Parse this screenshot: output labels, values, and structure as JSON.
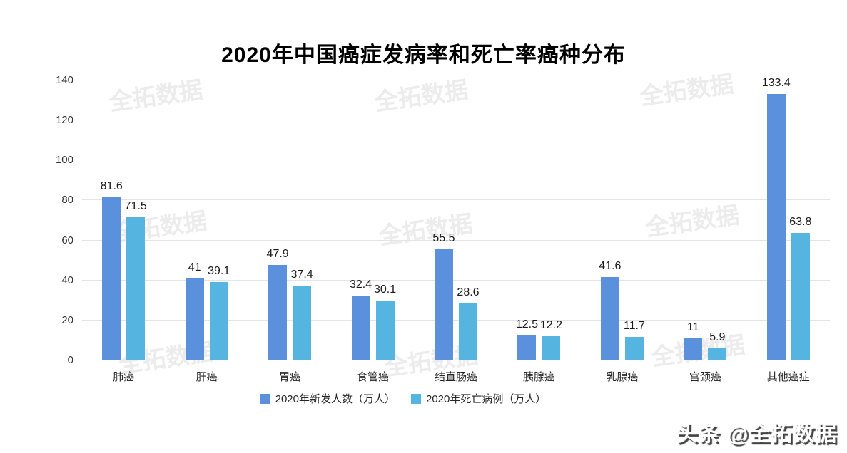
{
  "watermark": {
    "text": "全拓数据",
    "color": "#ececec"
  },
  "branding": {
    "text": "头条 @全拓数据"
  },
  "chart_data": {
    "type": "bar",
    "title": "2020年中国癌症发病率和死亡率癌种分布",
    "categories": [
      "肺癌",
      "肝癌",
      "胃癌",
      "食管癌",
      "结直肠癌",
      "胰腺癌",
      "乳腺癌",
      "宫颈癌",
      "其他癌症"
    ],
    "series": [
      {
        "name": "2020年新发人数（万人）",
        "color": "#5b90dd",
        "values": [
          81.6,
          41,
          47.9,
          32.4,
          55.5,
          12.5,
          41.6,
          11,
          133.4
        ]
      },
      {
        "name": "2020年死亡病例（万人）",
        "color": "#55b5e0",
        "values": [
          71.5,
          39.1,
          37.4,
          30.1,
          28.6,
          12.2,
          11.7,
          5.9,
          63.8
        ]
      }
    ],
    "xlabel": "",
    "ylabel": "",
    "ylim": [
      0,
      140
    ],
    "yticks": [
      0,
      20,
      40,
      60,
      80,
      100,
      120,
      140
    ],
    "grid": true,
    "legend_position": "bottom",
    "value_labels": true
  }
}
